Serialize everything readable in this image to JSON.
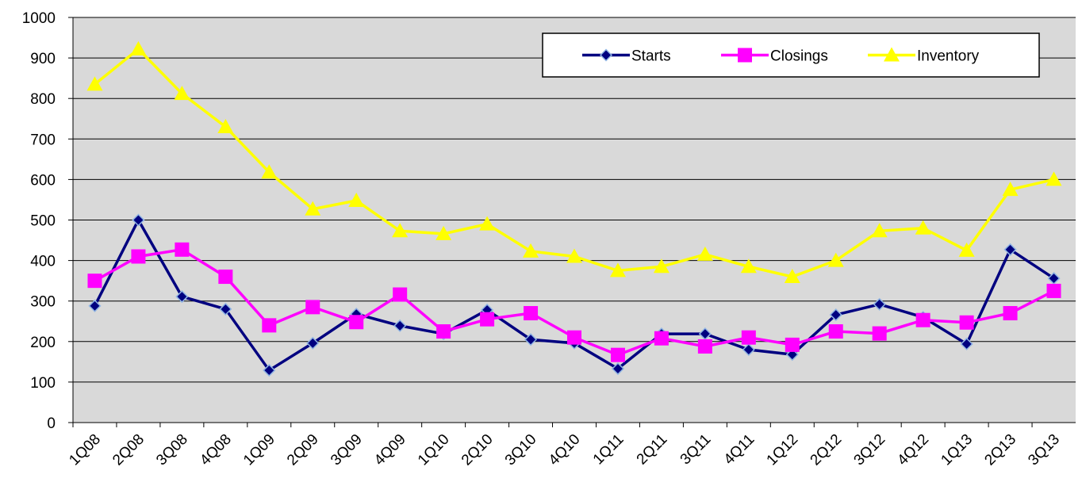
{
  "chart_data": {
    "type": "line",
    "categories": [
      "1Q08",
      "2Q08",
      "3Q08",
      "4Q08",
      "1Q09",
      "2Q09",
      "3Q09",
      "4Q09",
      "1Q10",
      "2Q10",
      "3Q10",
      "4Q10",
      "1Q11",
      "2Q11",
      "3Q11",
      "4Q11",
      "1Q12",
      "2Q12",
      "3Q12",
      "4Q12",
      "1Q13",
      "2Q13",
      "3Q13"
    ],
    "series": [
      {
        "name": "Starts",
        "color": "#000080",
        "marker": "diamond",
        "values": [
          288,
          500,
          311,
          280,
          129,
          196,
          268,
          239,
          219,
          278,
          205,
          196,
          133,
          219,
          219,
          180,
          168,
          266,
          292,
          260,
          194,
          427,
          356
        ]
      },
      {
        "name": "Closings",
        "color": "#ff00ff",
        "marker": "square",
        "values": [
          350,
          410,
          427,
          360,
          240,
          285,
          248,
          316,
          225,
          255,
          270,
          210,
          167,
          208,
          188,
          210,
          192,
          225,
          220,
          253,
          247,
          270,
          325
        ]
      },
      {
        "name": "Inventory",
        "color": "#ffff00",
        "marker": "triangle",
        "values": [
          835,
          922,
          812,
          730,
          618,
          527,
          548,
          473,
          466,
          490,
          423,
          410,
          375,
          385,
          415,
          385,
          360,
          400,
          473,
          480,
          425,
          575,
          600
        ]
      }
    ],
    "ylim": [
      0,
      1000
    ],
    "yticks": [
      0,
      100,
      200,
      300,
      400,
      500,
      600,
      700,
      800,
      900,
      1000
    ],
    "grid": true,
    "legend": "top-right"
  }
}
